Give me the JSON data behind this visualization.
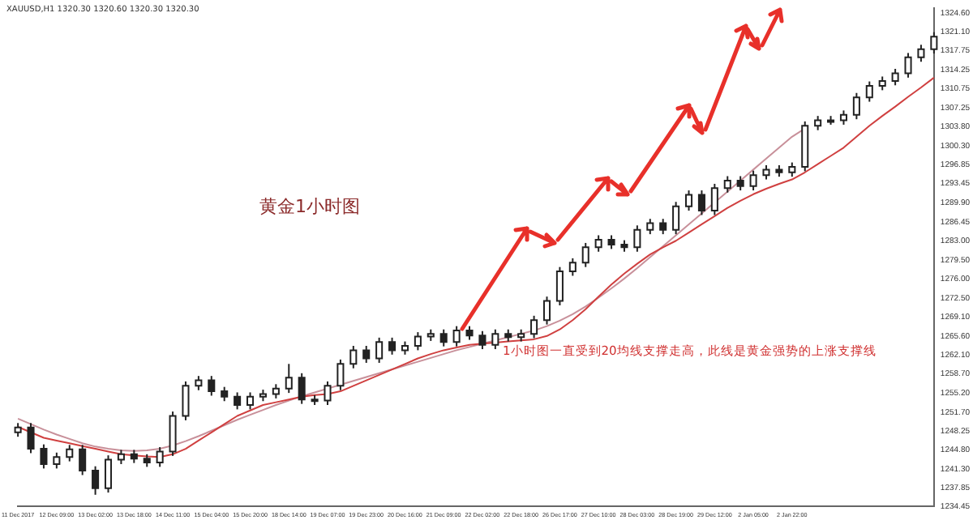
{
  "chart_data": {
    "type": "candlestick",
    "categories": [
      "11 Dec 2017",
      null,
      null,
      "12 Dec 09:00",
      null,
      null,
      "13 Dec 02:00",
      null,
      null,
      "13 Dec 18:00",
      null,
      null,
      "14 Dec 11:00",
      null,
      null,
      "15 Dec 04:00",
      null,
      null,
      "15 Dec 20:00",
      null,
      null,
      "18 Dec 14:00",
      null,
      null,
      "19 Dec 07:00",
      null,
      null,
      "19 Dec 23:00",
      null,
      null,
      "20 Dec 16:00",
      null,
      null,
      "21 Dec 09:00",
      null,
      null,
      "22 Dec 02:00",
      null,
      null,
      "22 Dec 18:00",
      null,
      null,
      "26 Dec 17:00",
      null,
      null,
      "27 Dec 10:00",
      null,
      null,
      "28 Dec 03:00",
      null,
      null,
      "28 Dec 19:00",
      null,
      null,
      "29 Dec 12:00",
      null,
      null,
      "2 Jan 05:00",
      null,
      null,
      "2 Jan 22:00",
      null,
      null,
      null,
      null,
      null,
      null,
      null,
      null,
      null,
      null,
      null
    ],
    "ohlc": [
      [
        1248.0,
        1249.7,
        1247.2,
        1248.9
      ],
      [
        1248.9,
        1249.7,
        1244.2,
        1245
      ],
      [
        1245,
        1245.8,
        1241.4,
        1242.2
      ],
      [
        1242.2,
        1244.3,
        1241.4,
        1243.5
      ],
      [
        1243.5,
        1245.7,
        1242.7,
        1244.9
      ],
      [
        1244.9,
        1245.7,
        1240.2,
        1241
      ],
      [
        1241,
        1241.8,
        1236.6,
        1237.8
      ],
      [
        1237.8,
        1243.8,
        1237,
        1243
      ],
      [
        1243,
        1244.8,
        1242.2,
        1244
      ],
      [
        1244,
        1244.8,
        1242.4,
        1243.2
      ],
      [
        1243.2,
        1244,
        1241.7,
        1242.5
      ],
      [
        1242.5,
        1245.3,
        1241.7,
        1244.5
      ],
      [
        1244.5,
        1251.8,
        1243.7,
        1251
      ],
      [
        1251,
        1257.3,
        1250.2,
        1256.5
      ],
      [
        1256.5,
        1258.3,
        1255.7,
        1257.5
      ],
      [
        1257.5,
        1258.3,
        1254.7,
        1255.5
      ],
      [
        1255.5,
        1256.3,
        1253.7,
        1254.5
      ],
      [
        1254.5,
        1255.3,
        1252.2,
        1253
      ],
      [
        1253,
        1255.3,
        1252.2,
        1254.5
      ],
      [
        1254.5,
        1255.8,
        1253.7,
        1255
      ],
      [
        1255,
        1256.8,
        1254.2,
        1256
      ],
      [
        1256,
        1260.5,
        1255.2,
        1258
      ],
      [
        1258,
        1258.8,
        1253.2,
        1254
      ],
      [
        1254,
        1254.8,
        1253,
        1253.8
      ],
      [
        1253.8,
        1257.3,
        1253,
        1256.5
      ],
      [
        1256.5,
        1261.3,
        1255.7,
        1260.5
      ],
      [
        1260.5,
        1263.8,
        1259.7,
        1263
      ],
      [
        1263,
        1263.8,
        1260.7,
        1261.5
      ],
      [
        1261.5,
        1265.3,
        1260.7,
        1264.5
      ],
      [
        1264.5,
        1265.3,
        1262.2,
        1263
      ],
      [
        1263,
        1264.6,
        1262.2,
        1263.8
      ],
      [
        1263.8,
        1266.3,
        1263,
        1265.5
      ],
      [
        1265.5,
        1266.8,
        1264.7,
        1266
      ],
      [
        1266,
        1266.8,
        1263.7,
        1264.5
      ],
      [
        1264.5,
        1267.4,
        1263.7,
        1266.6
      ],
      [
        1266.6,
        1267.4,
        1264.9,
        1265.7
      ],
      [
        1265.7,
        1266.5,
        1263.2,
        1264
      ],
      [
        1264,
        1266.8,
        1263.2,
        1266
      ],
      [
        1266,
        1266.8,
        1264.6,
        1265.4
      ],
      [
        1265.4,
        1266.8,
        1264.6,
        1266
      ],
      [
        1266,
        1269.3,
        1265.2,
        1268.5
      ],
      [
        1268.5,
        1272.8,
        1267.7,
        1272
      ],
      [
        1272,
        1278.2,
        1271.2,
        1277.4
      ],
      [
        1277.4,
        1279.8,
        1276.6,
        1279
      ],
      [
        1279,
        1282.6,
        1278.2,
        1281.8
      ],
      [
        1281.8,
        1284,
        1281,
        1283.2
      ],
      [
        1283.2,
        1284,
        1281.5,
        1282.3
      ],
      [
        1282.3,
        1283.1,
        1281,
        1281.8
      ],
      [
        1281.8,
        1285.8,
        1281,
        1285
      ],
      [
        1285,
        1287,
        1284.2,
        1286.2
      ],
      [
        1286.2,
        1287,
        1284.2,
        1285
      ],
      [
        1285,
        1290.1,
        1284.2,
        1289.3
      ],
      [
        1289.3,
        1292.2,
        1288.5,
        1291.4
      ],
      [
        1291.4,
        1292.2,
        1287.7,
        1288.5
      ],
      [
        1288.5,
        1293.4,
        1287.7,
        1292.6
      ],
      [
        1292.6,
        1294.8,
        1291.8,
        1294
      ],
      [
        1294,
        1294.8,
        1292.2,
        1293
      ],
      [
        1293,
        1295.8,
        1292.2,
        1295
      ],
      [
        1295,
        1296.8,
        1294.2,
        1296
      ],
      [
        1296,
        1296.8,
        1294.7,
        1295.5
      ],
      [
        1295.5,
        1297.3,
        1294.7,
        1296.5
      ],
      [
        1296.5,
        1304.8,
        1295.7,
        1304
      ],
      [
        1304,
        1305.8,
        1303.2,
        1305
      ],
      [
        1305,
        1305.8,
        1304.2,
        1305
      ],
      [
        1305,
        1306.8,
        1304.2,
        1306
      ],
      [
        1306,
        1310,
        1305.2,
        1309.2
      ],
      [
        1309.2,
        1312.1,
        1308.4,
        1311.3
      ],
      [
        1311.3,
        1313,
        1310.5,
        1312.2
      ],
      [
        1312.2,
        1314.4,
        1311.4,
        1313.6
      ],
      [
        1313.6,
        1317.3,
        1312.8,
        1316.5
      ],
      [
        1316.5,
        1318.8,
        1315.7,
        1318
      ],
      [
        1318,
        1321.1,
        1317.2,
        1320.3
      ]
    ],
    "series": [
      {
        "type": "line",
        "color": "#d04040",
        "values": [
          1249,
          1248,
          1247,
          1246.5,
          1246,
          1245.5,
          1245,
          1244.5,
          1244,
          1243.8,
          1243.6,
          1243.5,
          1244,
          1245,
          1246.5,
          1248,
          1249.5,
          1251,
          1252,
          1253,
          1253.5,
          1254,
          1254.5,
          1254.8,
          1255,
          1255.5,
          1256.5,
          1257.5,
          1258.5,
          1259.5,
          1260.5,
          1261.5,
          1262.3,
          1263,
          1263.5,
          1264,
          1264.2,
          1264.4,
          1264.6,
          1264.8,
          1265,
          1265.6,
          1266.8,
          1268.5,
          1270.5,
          1272.8,
          1275,
          1277,
          1278.8,
          1280.5,
          1281.8,
          1283,
          1284.5,
          1286,
          1287.5,
          1289,
          1290.3,
          1291.5,
          1292.5,
          1293.4,
          1294.2,
          1295.5,
          1297,
          1298.5,
          1300,
          1302,
          1304,
          1305.8,
          1307.5,
          1309.3,
          1311,
          1312.8
        ]
      },
      {
        "type": "line",
        "color": "#c8909a",
        "values": [
          1250.5,
          1249.5,
          1248.5,
          1247.6,
          1246.8,
          1246,
          1245.4,
          1245,
          1244.7,
          1244.6,
          1244.7,
          1245,
          1245.6,
          1246.4,
          1247.3,
          1248.3,
          1249.3,
          1250.3,
          1251.2,
          1252.1,
          1253,
          1253.8,
          1254.6,
          1255.3,
          1256,
          1256.7,
          1257.4,
          1258.1,
          1258.8,
          1259.5,
          1260.2,
          1260.9,
          1261.6,
          1262.3,
          1263,
          1263.6,
          1264.2,
          1264.8,
          1265.4,
          1266,
          1266.6,
          1267.4,
          1268.4,
          1269.6,
          1271,
          1272.6,
          1274.3,
          1276.1,
          1278,
          1280,
          1282,
          1284,
          1286,
          1288,
          1290,
          1292,
          1294,
          1296,
          1298,
          1300,
          1302,
          1303.5,
          null,
          null,
          null,
          null,
          null,
          null,
          null,
          null,
          null,
          null
        ]
      }
    ],
    "ylim": [
      1234.45,
      1325.5
    ],
    "yticks": [
      {
        "value": 1234.45,
        "label": "1234.45"
      },
      {
        "value": 1237.85,
        "label": "1237.85"
      },
      {
        "value": 1241.3,
        "label": "1241.30"
      },
      {
        "value": 1244.8,
        "label": "1244.80"
      },
      {
        "value": 1248.25,
        "label": "1248.25"
      },
      {
        "value": 1251.7,
        "label": "1251.70"
      },
      {
        "value": 1255.2,
        "label": "1255.20"
      },
      {
        "value": 1258.7,
        "label": "1258.70"
      },
      {
        "value": 1262.1,
        "label": "1262.10"
      },
      {
        "value": 1265.6,
        "label": "1265.60"
      },
      {
        "value": 1269.1,
        "label": "1269.10"
      },
      {
        "value": 1272.5,
        "label": "1272.50"
      },
      {
        "value": 1276,
        "label": "1276.00"
      },
      {
        "value": 1279.5,
        "label": "1279.50"
      },
      {
        "value": 1283,
        "label": "1283.00"
      },
      {
        "value": 1286.45,
        "label": "1286.45"
      },
      {
        "value": 1289.9,
        "label": "1289.90"
      },
      {
        "value": 1293.45,
        "label": "1293.45"
      },
      {
        "value": 1296.85,
        "label": "1296.85"
      },
      {
        "value": 1300.3,
        "label": "1300.30"
      },
      {
        "value": 1303.8,
        "label": "1303.80"
      },
      {
        "value": 1307.25,
        "label": "1307.25"
      },
      {
        "value": 1310.75,
        "label": "1310.75"
      },
      {
        "value": 1314.25,
        "label": "1314.25"
      },
      {
        "value": 1317.75,
        "label": "1317.75"
      },
      {
        "value": 1321.1,
        "label": "1321.10"
      },
      {
        "value": 1324.6,
        "label": "1324.60"
      }
    ],
    "annotations": [
      "XAUUSD,H1  1320.30 1320.60 1320.30 1320.30",
      "黄金1小时图",
      "1小时图一直受到20均线支撑走高，此线是黄金强势的上涨支撑线"
    ]
  }
}
